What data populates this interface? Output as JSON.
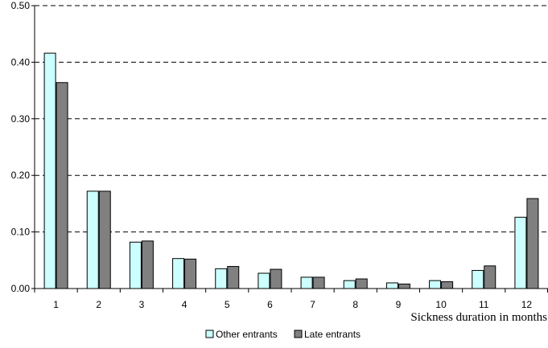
{
  "chart_data": {
    "type": "bar",
    "xlabel": "Sickness duration in months",
    "categories": [
      "1",
      "2",
      "3",
      "4",
      "5",
      "6",
      "7",
      "8",
      "9",
      "10",
      "11",
      "12"
    ],
    "ylim": [
      0,
      0.5
    ],
    "y_ticks": [
      "0.00",
      "0.10",
      "0.20",
      "0.30",
      "0.40",
      "0.50"
    ],
    "grid": "horizontal-dashed",
    "legend_position": "bottom-center",
    "series": [
      {
        "name": "Other entrants",
        "color": "#ccffff",
        "values": [
          0.416,
          0.172,
          0.082,
          0.053,
          0.035,
          0.027,
          0.02,
          0.014,
          0.01,
          0.014,
          0.032,
          0.126
        ]
      },
      {
        "name": "Late entrants",
        "color": "#808080",
        "values": [
          0.364,
          0.172,
          0.084,
          0.052,
          0.039,
          0.034,
          0.02,
          0.017,
          0.008,
          0.012,
          0.04,
          0.159
        ]
      }
    ]
  }
}
